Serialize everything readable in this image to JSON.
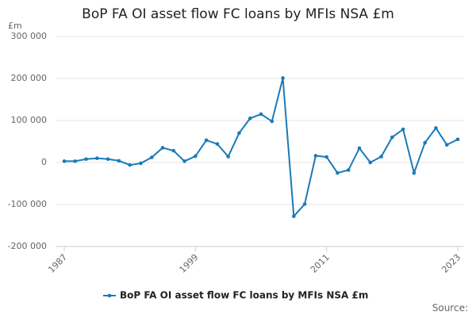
{
  "chart_data": {
    "type": "line",
    "title": "BoP FA OI asset flow FC loans by MFIs NSA £m",
    "y_label": "£m",
    "source": "Source:",
    "x": [
      1987,
      1988,
      1989,
      1990,
      1991,
      1992,
      1993,
      1994,
      1995,
      1996,
      1997,
      1998,
      1999,
      2000,
      2001,
      2002,
      2003,
      2004,
      2005,
      2006,
      2007,
      2008,
      2009,
      2010,
      2011,
      2012,
      2013,
      2014,
      2015,
      2016,
      2017,
      2018,
      2019,
      2020,
      2021,
      2022,
      2023
    ],
    "series": [
      {
        "name": "BoP FA OI asset flow FC loans by MFIs NSA £m",
        "color": "#1a7ab8",
        "values": [
          3000,
          3000,
          8000,
          10000,
          8000,
          4000,
          -6000,
          -2000,
          12000,
          35000,
          28000,
          3000,
          15000,
          53000,
          44000,
          14000,
          70000,
          105000,
          115000,
          98000,
          201000,
          -128000,
          -99000,
          16000,
          13000,
          -25000,
          -18000,
          34000,
          0,
          14000,
          60000,
          79000,
          -25000,
          47000,
          82000,
          42000,
          55000
        ]
      }
    ],
    "xlim": [
      1987,
      2023
    ],
    "xticks": [
      1987,
      1999,
      2011,
      2023
    ],
    "ylim": [
      -200000,
      300000
    ],
    "yticks": [
      {
        "value": -200000,
        "label": "-200 000"
      },
      {
        "value": -100000,
        "label": "-100 000"
      },
      0,
      {
        "value": 100000,
        "label": "100 000"
      },
      {
        "value": 200000,
        "label": "200 000"
      },
      {
        "value": 300000,
        "label": "300 000"
      }
    ],
    "grid": true
  }
}
